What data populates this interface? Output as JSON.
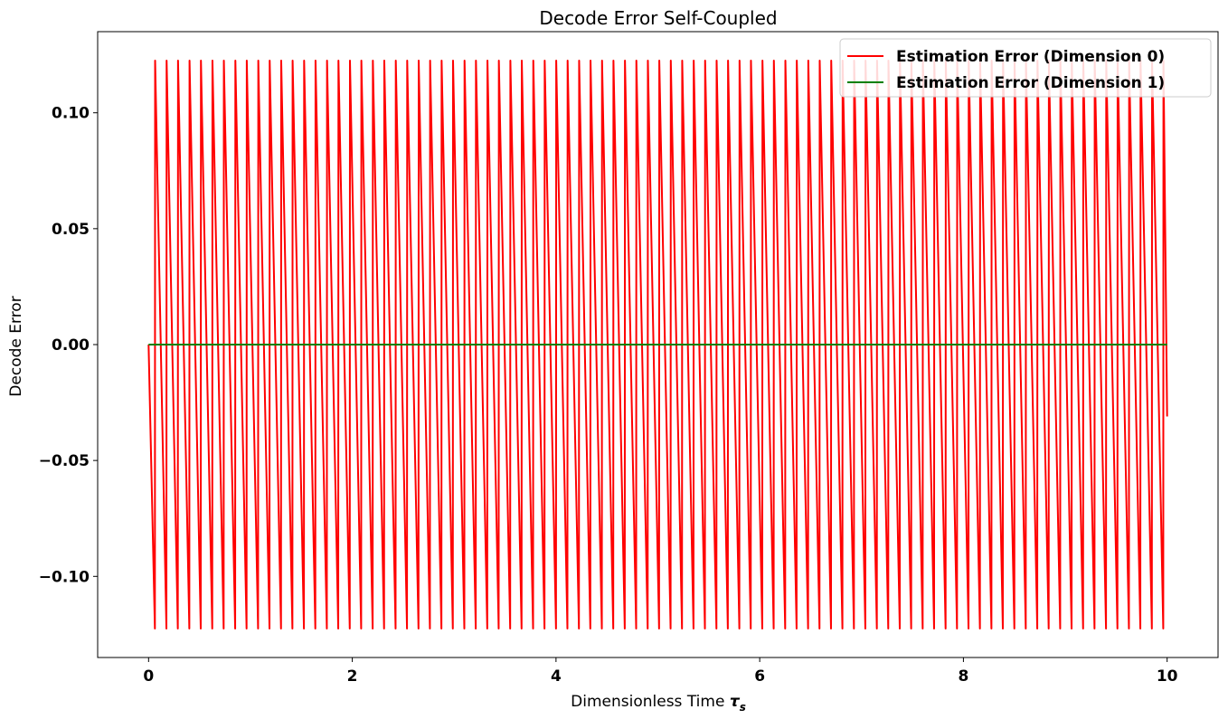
{
  "chart_data": {
    "type": "line",
    "title": "Decode Error Self-Coupled",
    "xlabel": "Dimensionless Time",
    "xlabel_symbol": "τ",
    "xlabel_subscript": "s",
    "ylabel": "Decode Error",
    "xlim": [
      -0.5,
      10.5
    ],
    "ylim": [
      -0.135,
      0.135
    ],
    "xticks": [
      0,
      2,
      4,
      6,
      8,
      10
    ],
    "xtick_labels": [
      "0",
      "2",
      "4",
      "6",
      "8",
      "10"
    ],
    "yticks": [
      0.1,
      0.05,
      0.0,
      -0.05,
      -0.1
    ],
    "ytick_labels": [
      "0.10",
      "0.05",
      "0.00",
      "−0.05",
      "−0.10"
    ],
    "grid": false,
    "legend_position": "top-right",
    "series": [
      {
        "name": "Estimation Error (Dimension 0)",
        "color": "#ff0000",
        "x_start": 0.0,
        "x_end": 10.0,
        "peak_times": [
          0.062,
          0.175,
          0.287,
          0.4,
          0.512,
          0.625,
          0.737,
          0.85,
          0.962,
          1.075,
          1.187,
          1.3,
          1.412,
          1.525,
          1.637,
          1.75,
          1.862,
          1.975,
          2.087,
          2.2,
          2.312,
          2.425,
          2.537,
          2.65,
          2.762,
          2.875,
          2.987,
          3.1,
          3.212,
          3.325,
          3.437,
          3.55,
          3.662,
          3.775,
          3.887,
          4.0,
          4.112,
          4.225,
          4.337,
          4.45,
          4.562,
          4.675,
          4.787,
          4.9,
          5.012,
          5.125,
          5.237,
          5.35,
          5.462,
          5.575,
          5.687,
          5.8,
          5.912,
          6.025,
          6.137,
          6.25,
          6.362,
          6.475,
          6.587,
          6.7,
          6.812,
          6.925,
          7.037,
          7.15,
          7.262,
          7.375,
          7.487,
          7.6,
          7.712,
          7.825,
          7.937,
          8.05,
          8.162,
          8.275,
          8.387,
          8.5,
          8.612,
          8.725,
          8.837,
          8.95,
          9.062,
          9.175,
          9.287,
          9.4,
          9.512,
          9.625,
          9.737,
          9.85,
          9.962
        ],
        "peak_value": 0.1225,
        "trough_value": -0.1225,
        "end_value": -0.031
      },
      {
        "name": "Estimation Error (Dimension 1)",
        "color": "#008000",
        "x": [
          0.0,
          10.0
        ],
        "y": [
          0.0,
          0.0
        ]
      }
    ]
  }
}
